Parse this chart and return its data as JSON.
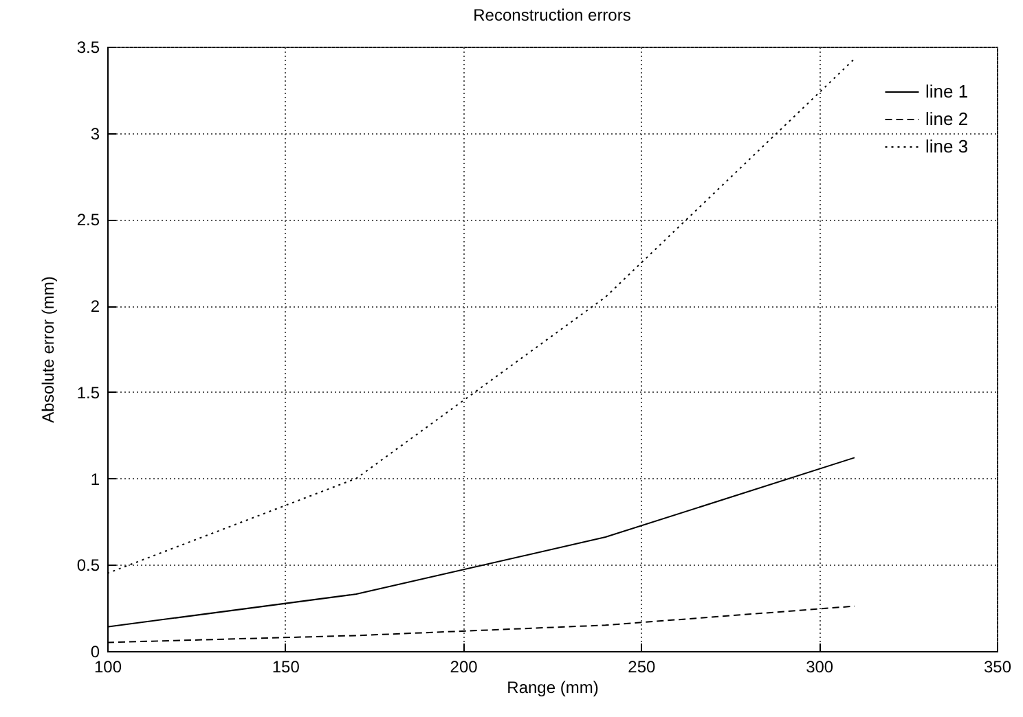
{
  "chart_data": {
    "type": "line",
    "title": "Reconstruction errors",
    "xlabel": "Range (mm)",
    "ylabel": "Absolute error (mm)",
    "x": [
      100,
      170,
      240,
      310
    ],
    "series": [
      {
        "name": "line 1",
        "color": "#000000",
        "line_style": "solid",
        "values": [
          0.14,
          0.33,
          0.66,
          1.12
        ]
      },
      {
        "name": "line 2",
        "color": "#000000",
        "line_style": "dashed",
        "values": [
          0.05,
          0.09,
          0.15,
          0.26
        ]
      },
      {
        "name": "line 3",
        "color": "#000000",
        "line_style": "dotted",
        "values": [
          0.45,
          1.0,
          2.05,
          3.43
        ]
      }
    ],
    "xlim": [
      100,
      350
    ],
    "xticks": [
      100,
      150,
      200,
      250,
      300,
      350
    ],
    "ylim": [
      0,
      3.5
    ],
    "yticks": [
      0,
      0.5,
      1,
      1.5,
      2,
      2.5,
      3,
      3.5
    ],
    "grid": true,
    "legend": "top right",
    "marker": "none"
  }
}
